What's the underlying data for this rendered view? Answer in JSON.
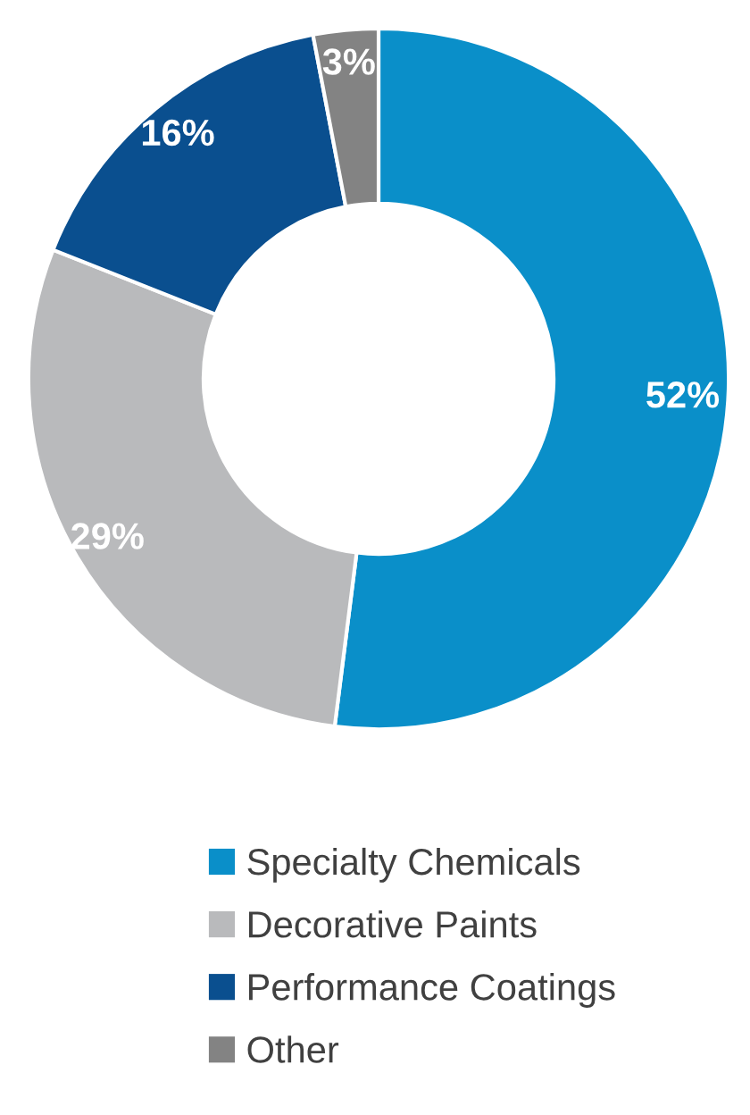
{
  "chart_data": {
    "type": "donut",
    "categories": [
      "Specialty Chemicals",
      "Decorative Paints",
      "Performance Coatings",
      "Other"
    ],
    "values": [
      52,
      29,
      16,
      3
    ],
    "colors": [
      "#0a8fc9",
      "#b9babc",
      "#0a4f8f",
      "#838383"
    ],
    "value_labels": [
      "52%",
      "29%",
      "16%",
      "3%"
    ],
    "legend": "bottom"
  }
}
